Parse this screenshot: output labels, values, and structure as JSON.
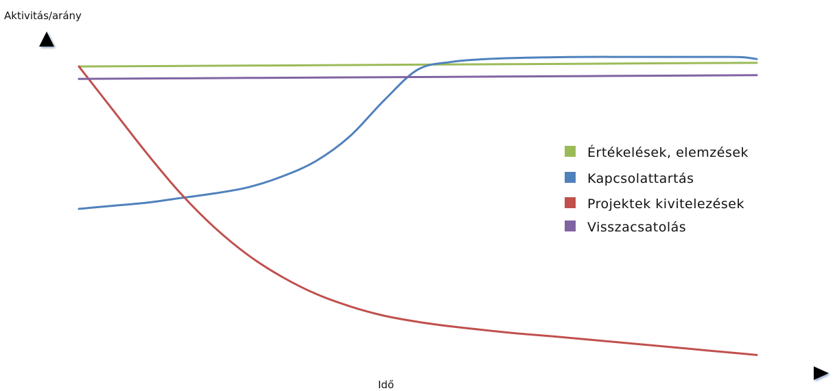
{
  "chart_data": {
    "type": "line",
    "title": "",
    "xlabel": "Idő",
    "ylabel": "Aktivitás/arány",
    "xlim": [
      0,
      1
    ],
    "ylim": [
      0,
      1
    ],
    "x_ticks": [],
    "y_ticks": [],
    "grid": false,
    "legend_position": "right",
    "series": [
      {
        "name": "Értékelések, elemzések",
        "color": "#9bbb59",
        "x": [
          0.0,
          0.25,
          0.5,
          0.75,
          1.0
        ],
        "values": [
          0.94,
          0.943,
          0.946,
          0.949,
          0.952
        ]
      },
      {
        "name": "Kapcsolattartás",
        "color": "#4f81bd",
        "x": [
          0.0,
          0.05,
          0.1,
          0.15,
          0.2,
          0.25,
          0.3,
          0.35,
          0.4,
          0.45,
          0.5,
          0.55,
          0.6,
          0.65,
          0.7,
          0.75,
          0.8,
          0.85,
          0.9,
          0.95,
          0.98,
          1.0
        ],
        "values": [
          0.48,
          0.49,
          0.5,
          0.515,
          0.53,
          0.55,
          0.585,
          0.635,
          0.715,
          0.83,
          0.93,
          0.955,
          0.964,
          0.968,
          0.97,
          0.971,
          0.971,
          0.971,
          0.971,
          0.971,
          0.97,
          0.964
        ]
      },
      {
        "name": "Projektek kivitelezések",
        "color": "#c0504d",
        "x": [
          0.0,
          0.05,
          0.1,
          0.15,
          0.2,
          0.25,
          0.3,
          0.35,
          0.4,
          0.45,
          0.5,
          0.55,
          0.6,
          0.65,
          0.7,
          0.75,
          0.8,
          0.85,
          0.9,
          0.95,
          1.0
        ],
        "values": [
          0.94,
          0.8,
          0.66,
          0.53,
          0.42,
          0.33,
          0.26,
          0.205,
          0.165,
          0.135,
          0.115,
          0.1,
          0.088,
          0.077,
          0.068,
          0.058,
          0.048,
          0.038,
          0.028,
          0.018,
          0.008
        ]
      },
      {
        "name": "Visszacsatolás",
        "color": "#8064a2",
        "x": [
          0.0,
          0.25,
          0.5,
          0.75,
          1.0
        ],
        "values": [
          0.9,
          0.903,
          0.906,
          0.909,
          0.912
        ]
      }
    ]
  }
}
